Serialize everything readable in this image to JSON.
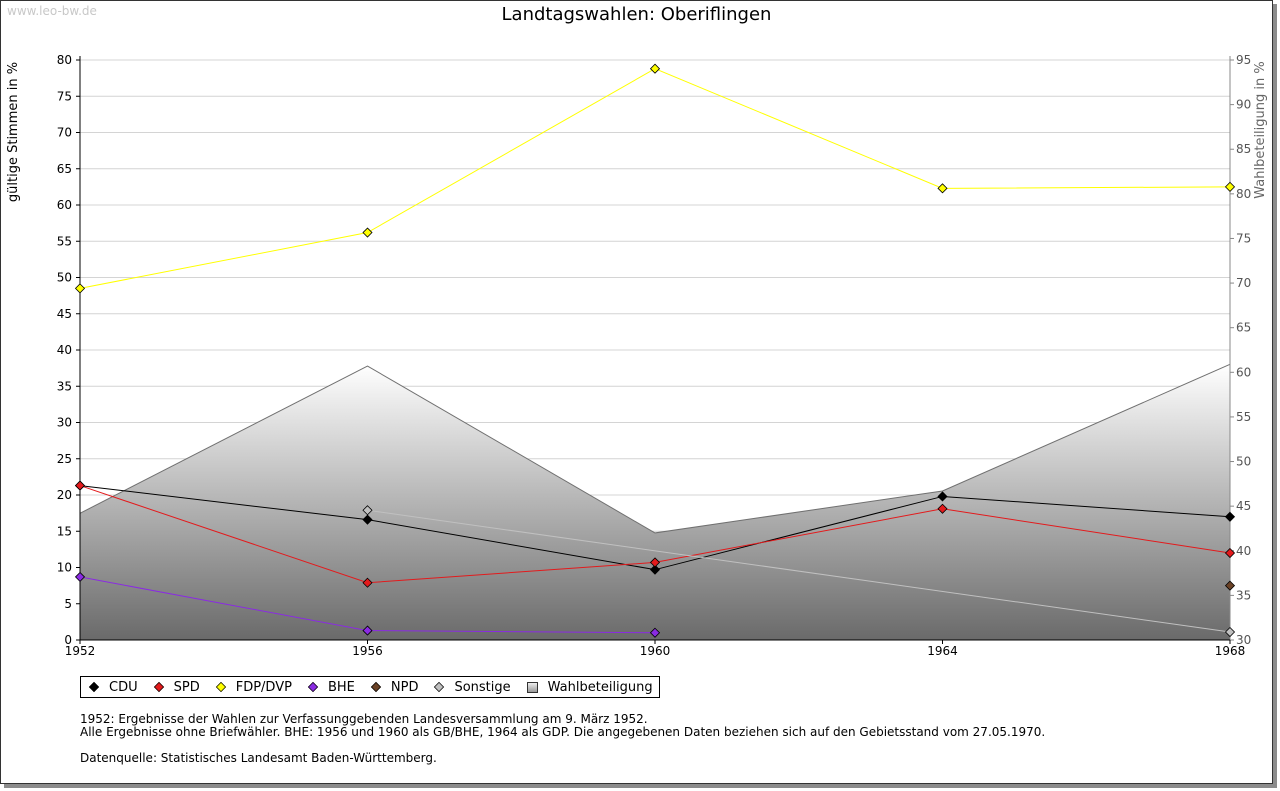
{
  "watermark": "www.leo-bw.de",
  "chart_data": {
    "type": "line",
    "title": "Landtagswahlen: Oberiflingen",
    "ylabel": "gültige Stimmen in %",
    "ylabel_right": "Wahlbeteiligung in %",
    "x": [
      1952,
      1956,
      1960,
      1964,
      1968
    ],
    "ylim": [
      0,
      80
    ],
    "ylim_right": [
      30,
      95
    ],
    "yticks": [
      0,
      5,
      10,
      15,
      20,
      25,
      30,
      35,
      40,
      45,
      50,
      55,
      60,
      65,
      70,
      75,
      80
    ],
    "yticks_right": [
      30,
      35,
      40,
      45,
      50,
      55,
      60,
      65,
      70,
      75,
      80,
      85,
      90,
      95
    ],
    "grid": true,
    "series": [
      {
        "name": "CDU",
        "color": "#000000",
        "values": [
          21.3,
          16.6,
          9.7,
          19.8,
          17.0
        ]
      },
      {
        "name": "SPD",
        "color": "#e31a1c",
        "values": [
          21.3,
          7.9,
          10.7,
          18.1,
          12.0
        ]
      },
      {
        "name": "FDP/DVP",
        "color": "#ffff00",
        "values": [
          48.5,
          56.2,
          78.8,
          62.3,
          62.5
        ]
      },
      {
        "name": "BHE",
        "color": "#8a2be2",
        "values": [
          8.7,
          1.3,
          1.0,
          null,
          null
        ]
      },
      {
        "name": "NPD",
        "color": "#6b4226",
        "values": [
          null,
          null,
          null,
          null,
          7.5
        ]
      },
      {
        "name": "Sonstige",
        "color": "#c0c0c0",
        "values": [
          null,
          17.9,
          null,
          null,
          1.1
        ]
      }
    ],
    "area_series": {
      "name": "Wahlbeteiligung",
      "axis": "right",
      "values": [
        44.2,
        60.7,
        42.0,
        46.7,
        60.9
      ]
    }
  },
  "legend": [
    "CDU",
    "SPD",
    "FDP/DVP",
    "BHE",
    "NPD",
    "Sonstige",
    "Wahlbeteiligung"
  ],
  "notes": {
    "line1": "1952: Ergebnisse der Wahlen zur Verfassunggebenden Landesversammlung am 9. März 1952.",
    "line2": "Alle Ergebnisse ohne Briefwähler. BHE: 1956 und 1960 als GB/BHE, 1964 als GDP. Die angegebenen Daten beziehen sich auf den Gebietsstand vom 27.05.1970.",
    "line3": "Datenquelle: Statistisches Landesamt Baden-Württemberg."
  }
}
